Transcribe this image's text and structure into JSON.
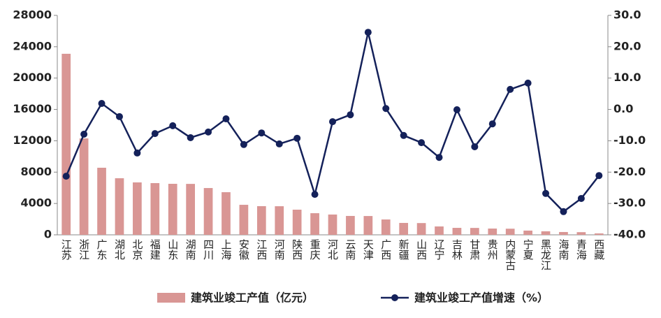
{
  "chart_data": {
    "type": "bar_line",
    "categories": [
      "江苏",
      "浙江",
      "广东",
      "湖北",
      "北京",
      "福建",
      "山东",
      "湖南",
      "四川",
      "上海",
      "安徽",
      "江西",
      "河南",
      "陕西",
      "重庆",
      "河北",
      "云南",
      "天津",
      "广西",
      "新疆",
      "山西",
      "辽宁",
      "吉林",
      "甘肃",
      "贵州",
      "内蒙古",
      "宁夏",
      "黑龙江",
      "海南",
      "青海",
      "西藏"
    ],
    "series": [
      {
        "name": "建筑业竣工产值（亿元）",
        "type": "bar",
        "color": "#d99694",
        "values": [
          23100,
          12300,
          8560,
          7220,
          6690,
          6600,
          6510,
          6500,
          5970,
          5440,
          3830,
          3660,
          3650,
          3210,
          2760,
          2590,
          2410,
          2400,
          1960,
          1520,
          1500,
          1070,
          890,
          880,
          800,
          780,
          540,
          450,
          360,
          340,
          180
        ]
      },
      {
        "name": "建筑业竣工产值增速（%）",
        "type": "line",
        "axis": "y2",
        "color": "#14215a",
        "values": [
          -21.3,
          -7.9,
          1.9,
          -2.3,
          -13.9,
          -7.7,
          -5.2,
          -9.0,
          -7.2,
          -3.0,
          -11.2,
          -7.5,
          -11.0,
          -9.2,
          -27.1,
          -3.9,
          -1.7,
          24.6,
          0.3,
          -8.3,
          -10.6,
          -15.3,
          -0.1,
          -11.9,
          -4.6,
          6.4,
          8.4,
          -26.8,
          -32.6,
          -28.4,
          -21.1
        ]
      }
    ],
    "ylim": [
      0,
      28000
    ],
    "yticks": [
      0,
      4000,
      8000,
      12000,
      16000,
      20000,
      24000,
      28000
    ],
    "y2lim": [
      -40,
      30
    ],
    "y2ticks": [
      {
        "value": -40,
        "label": "-40.0"
      },
      {
        "value": -30,
        "label": "-30.0"
      },
      {
        "value": -20,
        "label": "-20.0"
      },
      {
        "value": -10,
        "label": "-10.0"
      },
      {
        "value": 0,
        "label": "0.0"
      },
      {
        "value": 10,
        "label": "10.0"
      },
      {
        "value": 20,
        "label": "20.0"
      },
      {
        "value": 30,
        "label": "30.0"
      }
    ],
    "grid": false
  }
}
